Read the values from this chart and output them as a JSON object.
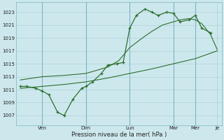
{
  "bg_color": "#cde8ed",
  "grid_color": "#a8cdd4",
  "line_color": "#2d6e2d",
  "title": "Pression niveau de la mer( hPa )",
  "ylabel_ticks": [
    1007,
    1009,
    1011,
    1013,
    1015,
    1017,
    1019,
    1021,
    1023
  ],
  "ylim": [
    1005.5,
    1024.5
  ],
  "xlim": [
    -0.2,
    9.2
  ],
  "x_tick_pos": [
    1,
    3,
    5,
    7,
    8,
    9
  ],
  "x_tick_labels": [
    "Ven",
    "Dim",
    "Lun",
    "Mar",
    "Mer",
    "Je"
  ],
  "vlines": [
    1,
    3,
    5,
    7,
    8
  ],
  "line1_x": [
    0.0,
    0.3,
    0.7,
    1.0,
    1.3,
    1.7,
    2.0,
    2.4,
    2.8,
    3.0,
    3.3,
    3.7,
    4.0,
    4.4,
    4.7,
    5.0,
    5.3,
    5.7,
    6.0,
    6.3,
    6.7,
    7.0,
    7.3,
    7.7,
    8.0,
    8.3,
    8.7
  ],
  "line1_y": [
    1011.5,
    1011.5,
    1011.2,
    1010.8,
    1010.2,
    1007.5,
    1007.0,
    1009.5,
    1011.2,
    1011.5,
    1012.2,
    1013.5,
    1014.8,
    1015.0,
    1015.2,
    1020.5,
    1022.5,
    1023.5,
    1023.0,
    1022.5,
    1023.0,
    1022.8,
    1021.5,
    1021.8,
    1022.5,
    1020.5,
    1019.8
  ],
  "line2_x": [
    0.0,
    1.0,
    2.0,
    3.0,
    4.0,
    4.5,
    5.0,
    5.5,
    6.0,
    6.5,
    7.0,
    7.3,
    7.7,
    8.0,
    8.3,
    8.7,
    9.0
  ],
  "line2_y": [
    1012.5,
    1013.0,
    1013.2,
    1013.5,
    1014.5,
    1015.5,
    1017.5,
    1018.8,
    1020.0,
    1021.0,
    1021.5,
    1021.8,
    1022.0,
    1021.8,
    1021.2,
    1019.5,
    1017.2
  ],
  "line3_x": [
    0.0,
    1.0,
    2.0,
    3.0,
    4.0,
    5.0,
    6.0,
    7.0,
    8.0,
    9.0
  ],
  "line3_y": [
    1011.2,
    1011.5,
    1011.8,
    1012.2,
    1012.8,
    1013.5,
    1014.2,
    1015.0,
    1015.8,
    1017.0
  ]
}
